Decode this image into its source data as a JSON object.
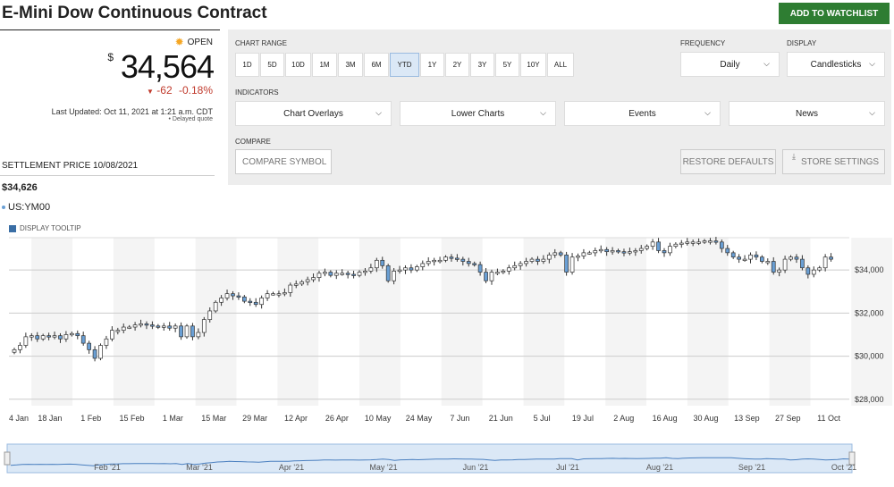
{
  "title": "E-Mini Dow Continuous Contract",
  "watchlist_label": "ADD TO WATCHLIST",
  "quote": {
    "status": "OPEN",
    "currency": "$",
    "price": "34,564",
    "change": "-62",
    "change_pct": "-0.18%",
    "last_updated": "Last Updated: Oct 11, 2021 at 1:21 a.m. CDT",
    "delayed": "• Delayed quote"
  },
  "settlement": {
    "label": "SETTLEMENT PRICE 10/08/2021",
    "value": "$34,626",
    "symbol": "US:YM00",
    "tooltip_label": "DISPLAY TOOLTIP"
  },
  "controls": {
    "chart_range_label": "CHART RANGE",
    "ranges": [
      "1D",
      "5D",
      "10D",
      "1M",
      "3M",
      "6M",
      "YTD",
      "1Y",
      "2Y",
      "3Y",
      "5Y",
      "10Y",
      "ALL"
    ],
    "active_range": "YTD",
    "frequency_label": "FREQUENCY",
    "frequency_value": "Daily",
    "display_label": "DISPLAY",
    "display_value": "Candlesticks",
    "indicators_label": "INDICATORS",
    "indicators": [
      "Chart Overlays",
      "Lower Charts",
      "Events",
      "News"
    ],
    "compare_label": "COMPARE",
    "compare_placeholder": "COMPARE SYMBOL",
    "restore_label": "RESTORE DEFAULTS",
    "store_label": "STORE SETTINGS"
  },
  "colors": {
    "accent_green": "#2e7d32",
    "down_red": "#c0392b",
    "candle_up": "#ffffff",
    "candle_down": "#6a9fd4",
    "navigator_fill": "#dbe8f6"
  },
  "chart_data": {
    "type": "candlestick",
    "x_ticks": [
      "4 Jan",
      "18 Jan",
      "1 Feb",
      "15 Feb",
      "1 Mar",
      "15 Mar",
      "29 Mar",
      "12 Apr",
      "26 Apr",
      "10 May",
      "24 May",
      "7 Jun",
      "21 Jun",
      "5 Jul",
      "19 Jul",
      "2 Aug",
      "16 Aug",
      "30 Aug",
      "13 Sep",
      "27 Sep",
      "11 Oct"
    ],
    "y_ticks": [
      "$28,000",
      "$30,000",
      "$32,000",
      "$34,000"
    ],
    "y_tick_values": [
      28000,
      30000,
      32000,
      34000
    ],
    "ylim": [
      27700,
      35500
    ],
    "closes": [
      30300,
      30500,
      30900,
      30950,
      30800,
      30950,
      30900,
      30950,
      30800,
      31000,
      31050,
      30950,
      30600,
      30300,
      29900,
      30500,
      30800,
      31200,
      31200,
      31350,
      31350,
      31450,
      31500,
      31450,
      31400,
      31350,
      31400,
      31300,
      31400,
      30900,
      31400,
      30900,
      31100,
      31700,
      32100,
      32500,
      32700,
      32900,
      32800,
      32750,
      32550,
      32500,
      32400,
      32700,
      32900,
      32900,
      32900,
      32950,
      33300,
      33350,
      33450,
      33550,
      33650,
      33850,
      33900,
      33750,
      33850,
      33850,
      33800,
      33750,
      33900,
      33950,
      34100,
      34450,
      34200,
      33500,
      33950,
      34000,
      34100,
      34000,
      34150,
      34300,
      34400,
      34450,
      34450,
      34600,
      34550,
      34500,
      34400,
      34300,
      34250,
      33900,
      33500,
      33900,
      33900,
      33950,
      34100,
      34200,
      34300,
      34400,
      34500,
      34400,
      34500,
      34700,
      34800,
      34700,
      33900,
      34600,
      34650,
      34800,
      34800,
      34900,
      34950,
      34850,
      34900,
      34850,
      34800,
      34850,
      34900,
      35000,
      35100,
      35300,
      34900,
      34800,
      35100,
      35200,
      35250,
      35300,
      35300,
      35300,
      35350,
      35350,
      35300,
      35000,
      34800,
      34600,
      34500,
      34500,
      34700,
      34600,
      34400,
      34400,
      33900,
      34000,
      34500,
      34600,
      34500,
      34100,
      33800,
      34000,
      34100,
      34600,
      34500
    ]
  },
  "navigator": {
    "months": [
      "Feb '21",
      "Mar '21",
      "Apr '21",
      "May '21",
      "Jun '21",
      "Jul '21",
      "Aug '21",
      "Sep '21",
      "Oct '21"
    ]
  }
}
